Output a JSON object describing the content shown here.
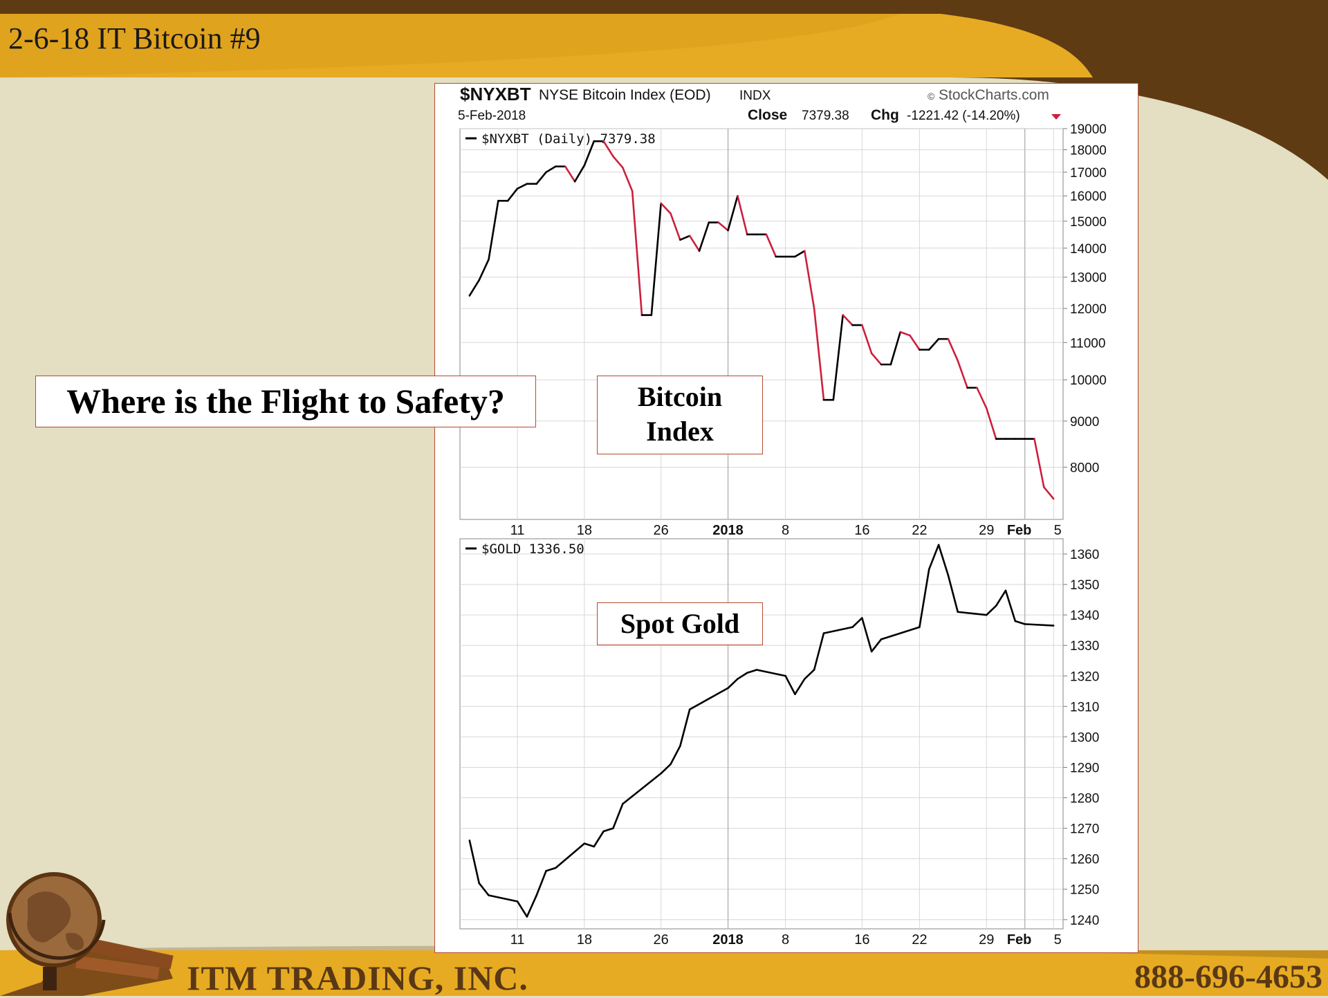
{
  "slide": {
    "title": "2-6-18 IT Bitcoin #9",
    "question": "Where is the Flight to Safety?",
    "bitcoin_callout": [
      "Bitcoin",
      "Index"
    ],
    "gold_callout": "Spot Gold",
    "company": "ITM TRADING, INC.",
    "phone": "888-696-4653"
  },
  "header": {
    "symbol": "$NYXBT",
    "name": "NYSE Bitcoin Index (EOD)",
    "exchange": "INDX",
    "watermark": "StockCharts.com",
    "date": "5-Feb-2018",
    "close_label": "Close",
    "close_value": "7379.38",
    "chg_label": "Chg",
    "chg_value": "-1221.42 (-14.20%)"
  },
  "colors": {
    "up": "#000000",
    "down": "#cc1f3d",
    "grid": "#d7d7d7",
    "frame_border": "#b44a30",
    "band_top": "#5f3b14",
    "band_gold": "#e3a820"
  },
  "chart_data": [
    {
      "type": "line",
      "legend": "$NYXBT (Daily) 7379.38",
      "scale": "log",
      "ylim": [
        7000,
        19000
      ],
      "yticks": [
        8000,
        9000,
        10000,
        11000,
        12000,
        13000,
        14000,
        15000,
        16000,
        17000,
        18000,
        19000
      ],
      "x": [
        "2017-12-06",
        "2017-12-07",
        "2017-12-08",
        "2017-12-09",
        "2017-12-10",
        "2017-12-11",
        "2017-12-12",
        "2017-12-13",
        "2017-12-14",
        "2017-12-15",
        "2017-12-16",
        "2017-12-17",
        "2017-12-18",
        "2017-12-19",
        "2017-12-20",
        "2017-12-21",
        "2017-12-22",
        "2017-12-23",
        "2017-12-24",
        "2017-12-25",
        "2017-12-26",
        "2017-12-27",
        "2017-12-28",
        "2017-12-29",
        "2017-12-30",
        "2017-12-31",
        "2018-01-01",
        "2018-01-02",
        "2018-01-03",
        "2018-01-04",
        "2018-01-05",
        "2018-01-06",
        "2018-01-07",
        "2018-01-08",
        "2018-01-09",
        "2018-01-10",
        "2018-01-11",
        "2018-01-12",
        "2018-01-13",
        "2018-01-14",
        "2018-01-15",
        "2018-01-16",
        "2018-01-17",
        "2018-01-18",
        "2018-01-19",
        "2018-01-20",
        "2018-01-21",
        "2018-01-22",
        "2018-01-23",
        "2018-01-24",
        "2018-01-25",
        "2018-01-26",
        "2018-01-27",
        "2018-01-28",
        "2018-01-29",
        "2018-01-30",
        "2018-01-31",
        "2018-02-01",
        "2018-02-02",
        "2018-02-03",
        "2018-02-04",
        "2018-02-05"
      ],
      "values": [
        12400,
        12900,
        13600,
        15800,
        15800,
        16300,
        16500,
        16500,
        17000,
        17250,
        17250,
        16600,
        17300,
        18400,
        18400,
        17700,
        17200,
        16200,
        11800,
        11800,
        15700,
        15300,
        14300,
        14450,
        13900,
        14950,
        14950,
        14650,
        16000,
        14500,
        14500,
        14500,
        13700,
        13700,
        13700,
        13900,
        12000,
        9500,
        9500,
        11800,
        11500,
        11500,
        10700,
        10400,
        10400,
        11300,
        11200,
        10800,
        10800,
        11100,
        11100,
        10500,
        9800,
        9800,
        9300,
        8600,
        8600,
        8600,
        8600,
        8600,
        7600,
        7379.38
      ],
      "x_ticks": [
        "11",
        "18",
        "26",
        "2018",
        "8",
        "16",
        "22",
        "29",
        "Feb",
        "5"
      ],
      "grid": true
    },
    {
      "type": "line",
      "legend": "$GOLD 1336.50",
      "ylim": [
        1237,
        1365
      ],
      "yticks": [
        1240,
        1250,
        1260,
        1270,
        1280,
        1290,
        1300,
        1310,
        1320,
        1330,
        1340,
        1350,
        1360
      ],
      "x": [
        "2017-12-06",
        "2017-12-07",
        "2017-12-08",
        "2017-12-11",
        "2017-12-12",
        "2017-12-13",
        "2017-12-14",
        "2017-12-15",
        "2017-12-18",
        "2017-12-19",
        "2017-12-20",
        "2017-12-21",
        "2017-12-22",
        "2017-12-26",
        "2017-12-27",
        "2017-12-28",
        "2017-12-29",
        "2018-01-02",
        "2018-01-03",
        "2018-01-04",
        "2018-01-05",
        "2018-01-08",
        "2018-01-09",
        "2018-01-10",
        "2018-01-11",
        "2018-01-12",
        "2018-01-15",
        "2018-01-16",
        "2018-01-17",
        "2018-01-18",
        "2018-01-19",
        "2018-01-22",
        "2018-01-23",
        "2018-01-24",
        "2018-01-25",
        "2018-01-26",
        "2018-01-29",
        "2018-01-30",
        "2018-01-31",
        "2018-02-01",
        "2018-02-02",
        "2018-02-05"
      ],
      "values": [
        1266,
        1252,
        1248,
        1246,
        1241,
        1248,
        1256,
        1257,
        1265,
        1264,
        1269,
        1270,
        1278,
        1288,
        1291,
        1297,
        1309,
        1316,
        1319,
        1321,
        1322,
        1320,
        1314,
        1319,
        1322,
        1334,
        1336,
        1339,
        1328,
        1332,
        1333,
        1336,
        1355,
        1363,
        1353,
        1341,
        1340,
        1343,
        1348,
        1338,
        1337,
        1336.5
      ],
      "x_ticks": [
        "11",
        "18",
        "26",
        "2018",
        "8",
        "16",
        "22",
        "29",
        "Feb",
        "5"
      ],
      "grid": true
    }
  ]
}
